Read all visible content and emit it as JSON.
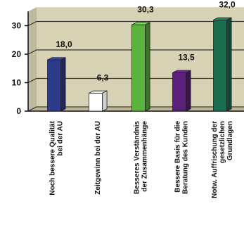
{
  "chart_data": {
    "type": "bar",
    "categories": [
      [
        "Noch bessere Qualität",
        "bei der AU"
      ],
      [
        "Zeitgewinn bei der AU"
      ],
      [
        "Besseres Verständnis",
        "der Zusammenhänge"
      ],
      [
        "Bessere Basis für die",
        "Beratung des Kunden"
      ],
      [
        "Notw. Auffrischung der",
        "gesetzlichen",
        "Grundlagen"
      ]
    ],
    "values": [
      18.0,
      6.3,
      30.3,
      13.5,
      32.0
    ],
    "data_labels": [
      "18,0",
      "6,3",
      "30,3",
      "13,5",
      "32,0"
    ],
    "bar_colors": [
      "#2e3a8c",
      "#ffffff",
      "#5ab43c",
      "#5a1f78",
      "#1a6e50"
    ],
    "y_ticks": [
      "0",
      "10",
      "20",
      "30"
    ],
    "ylim": [
      0,
      35
    ],
    "grid": true,
    "background_color": "#d8d2b4",
    "title": "",
    "xlabel": "",
    "ylabel": ""
  }
}
